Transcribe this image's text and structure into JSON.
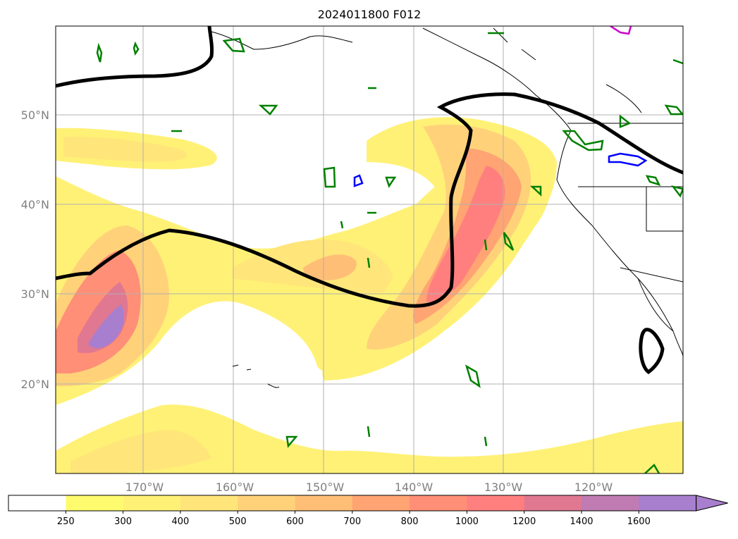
{
  "map": {
    "title": "2024011800 F012",
    "lon_labels": [
      "170°W",
      "160°W",
      "150°W",
      "140°W",
      "130°W",
      "120°W"
    ],
    "lat_labels": [
      "50°N",
      "40°N",
      "30°N",
      "20°N"
    ],
    "grid": true
  },
  "colorbar": {
    "labels": [
      "250",
      "300",
      "400",
      "500",
      "600",
      "700",
      "800",
      "1000",
      "1200",
      "1400",
      "1600"
    ],
    "colors": [
      "#ffffff",
      "#fffb6e",
      "#fff176",
      "#ffe57a",
      "#ffd27a",
      "#ffbe76",
      "#ffa472",
      "#ff8f76",
      "#ff7f7f",
      "#e07891",
      "#c07cb2",
      "#a87fce"
    ],
    "extend": "max"
  },
  "colors": {
    "contour_black": "#000000",
    "contour_green": "#008000",
    "contour_blue": "#0000ff",
    "contour_magenta": "#cc00cc",
    "grid": "#b0b0b0"
  }
}
